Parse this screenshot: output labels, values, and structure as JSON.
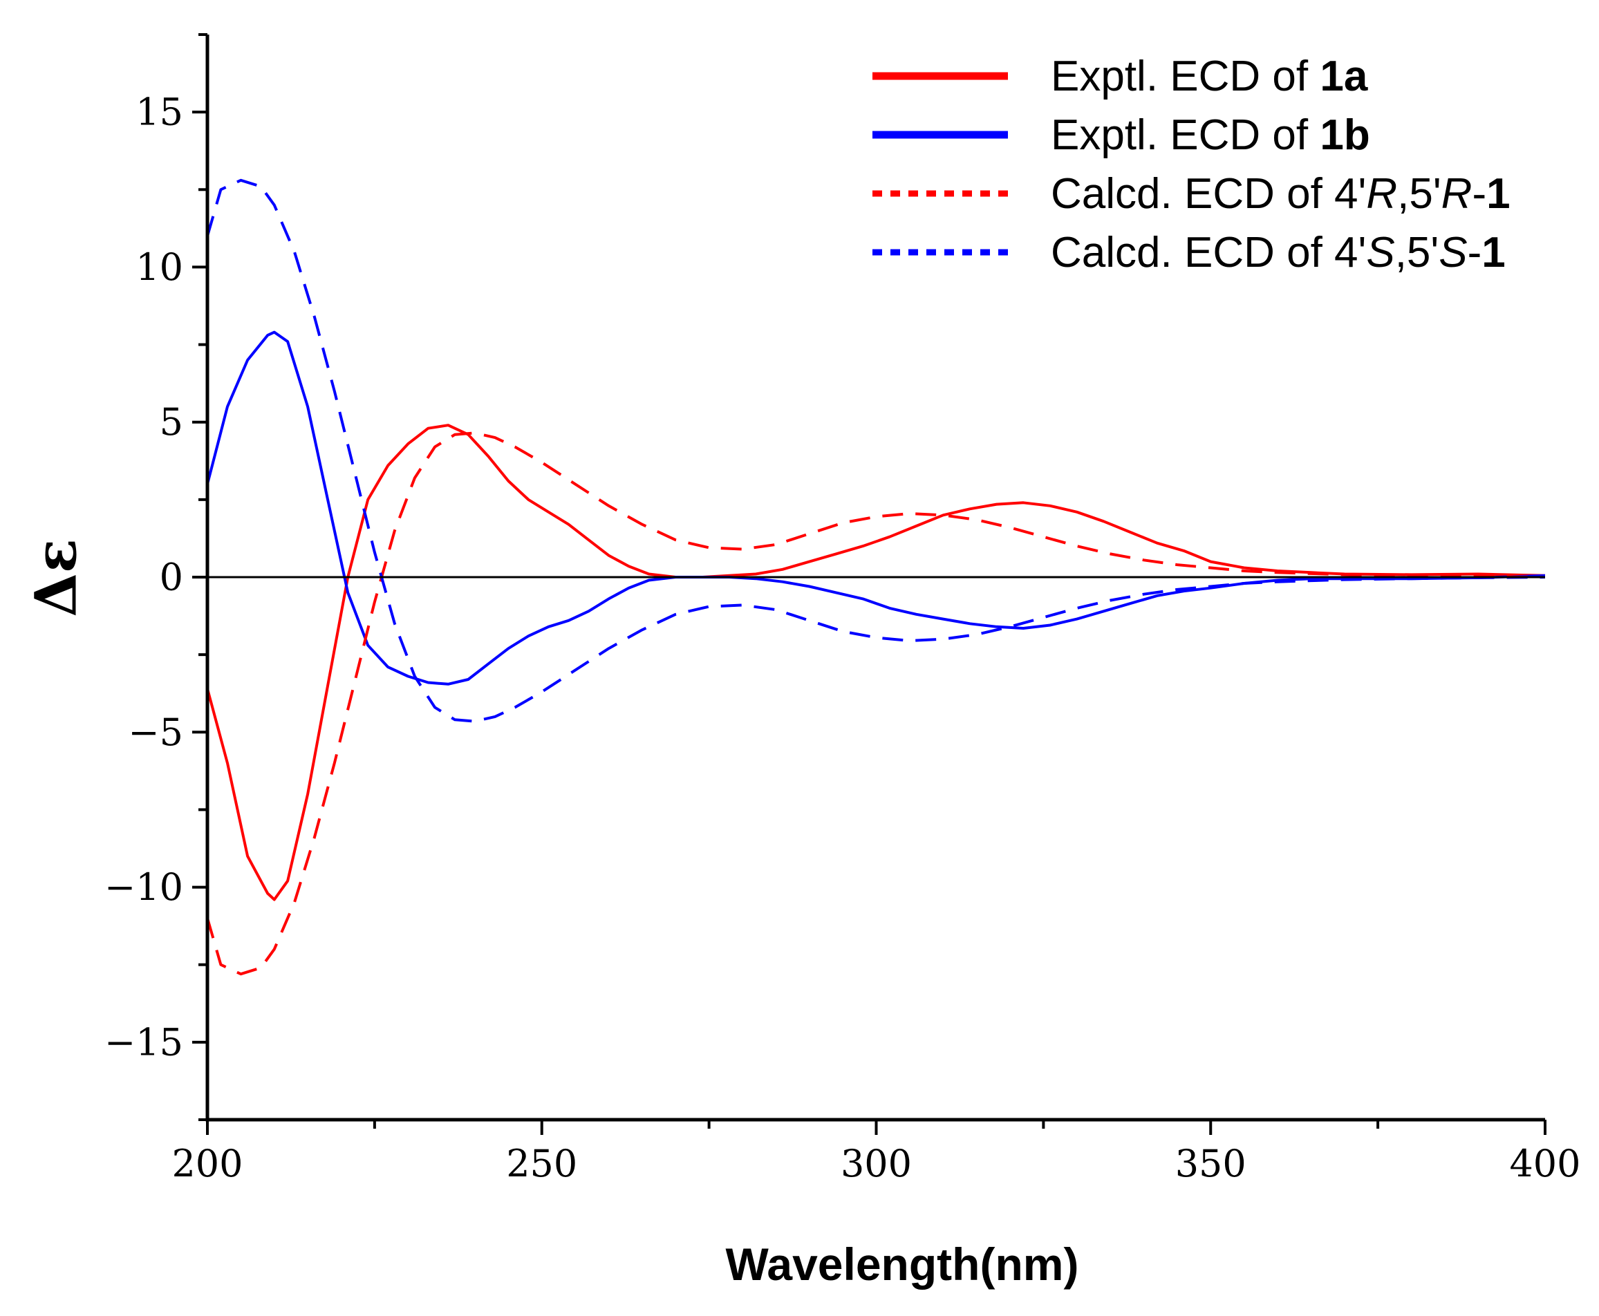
{
  "chart_data": {
    "type": "line",
    "title": "",
    "xlabel": "Wavelength(nm)",
    "ylabel": "Δε",
    "xlim": [
      200,
      400
    ],
    "ylim": [
      -17.5,
      17.5
    ],
    "xticks": [
      200,
      250,
      300,
      350,
      400
    ],
    "xtick_labels": [
      "200",
      "250",
      "300",
      "350",
      "400"
    ],
    "yticks": [
      -15,
      -10,
      -5,
      0,
      5,
      10,
      15
    ],
    "ytick_labels": [
      "−15",
      "−10",
      "−5",
      "0",
      "5",
      "10",
      "15"
    ],
    "legend_position": "top-right",
    "series": [
      {
        "name": "Exptl. ECD of 1a",
        "legend": {
          "prefix": "Exptl. ECD of ",
          "parts": [
            {
              "text": "1a",
              "style": "bold"
            }
          ]
        },
        "color": "#ff0000",
        "dash": "solid",
        "x": [
          200,
          203,
          206,
          209,
          210,
          212,
          215,
          218,
          221,
          224,
          227,
          230,
          233,
          236,
          239,
          242,
          245,
          248,
          251,
          254,
          257,
          260,
          263,
          266,
          270,
          274,
          278,
          282,
          286,
          290,
          294,
          298,
          302,
          306,
          310,
          314,
          318,
          322,
          326,
          330,
          334,
          338,
          342,
          346,
          350,
          355,
          360,
          365,
          370,
          380,
          390,
          400
        ],
        "y": [
          -3.6,
          -6.0,
          -9.0,
          -10.2,
          -10.4,
          -9.8,
          -7.0,
          -3.5,
          0.0,
          2.5,
          3.6,
          4.3,
          4.8,
          4.9,
          4.6,
          3.9,
          3.1,
          2.5,
          2.1,
          1.7,
          1.2,
          0.7,
          0.35,
          0.1,
          0.0,
          0.0,
          0.05,
          0.1,
          0.25,
          0.5,
          0.75,
          1.0,
          1.3,
          1.65,
          2.0,
          2.2,
          2.35,
          2.4,
          2.3,
          2.1,
          1.8,
          1.45,
          1.1,
          0.85,
          0.5,
          0.3,
          0.2,
          0.15,
          0.1,
          0.08,
          0.1,
          0.05
        ]
      },
      {
        "name": "Exptl. ECD of 1b",
        "legend": {
          "prefix": "Exptl. ECD of ",
          "parts": [
            {
              "text": "1b",
              "style": "bold"
            }
          ]
        },
        "color": "#0000ff",
        "dash": "solid",
        "x": [
          200,
          203,
          206,
          209,
          210,
          212,
          215,
          218,
          221,
          224,
          227,
          230,
          233,
          236,
          239,
          242,
          245,
          248,
          251,
          254,
          257,
          260,
          263,
          266,
          270,
          274,
          278,
          282,
          286,
          290,
          294,
          298,
          302,
          306,
          310,
          314,
          318,
          322,
          326,
          330,
          334,
          338,
          342,
          346,
          350,
          355,
          360,
          365,
          370,
          380,
          390,
          400
        ],
        "y": [
          3.0,
          5.5,
          7.0,
          7.8,
          7.9,
          7.6,
          5.5,
          2.5,
          -0.5,
          -2.2,
          -2.9,
          -3.2,
          -3.4,
          -3.45,
          -3.3,
          -2.8,
          -2.3,
          -1.9,
          -1.6,
          -1.4,
          -1.1,
          -0.7,
          -0.35,
          -0.1,
          0.0,
          0.0,
          0.0,
          -0.05,
          -0.15,
          -0.3,
          -0.5,
          -0.7,
          -1.0,
          -1.2,
          -1.35,
          -1.5,
          -1.6,
          -1.65,
          -1.55,
          -1.35,
          -1.1,
          -0.85,
          -0.6,
          -0.45,
          -0.35,
          -0.2,
          -0.1,
          -0.05,
          -0.05,
          -0.05,
          -0.02,
          0.05
        ]
      },
      {
        "name": "Calcd. ECD of 4'R,5'R-1",
        "legend": {
          "prefix": "Calcd. ECD of 4'",
          "parts": [
            {
              "text": "R",
              "style": "italic"
            },
            {
              "text": ",5'",
              "style": "normal"
            },
            {
              "text": "R",
              "style": "italic"
            },
            {
              "text": "-",
              "style": "normal"
            },
            {
              "text": "1",
              "style": "bold"
            }
          ]
        },
        "color": "#ff0000",
        "dash": "dashed",
        "x": [
          200,
          202,
          205,
          208,
          210,
          213,
          216,
          219,
          222,
          225,
          228,
          231,
          234,
          237,
          240,
          243,
          246,
          250,
          255,
          260,
          265,
          270,
          275,
          280,
          285,
          290,
          295,
          300,
          305,
          310,
          315,
          320,
          325,
          330,
          335,
          340,
          345,
          350,
          355,
          360,
          370,
          380,
          390,
          400
        ],
        "y": [
          -11.0,
          -12.5,
          -12.8,
          -12.6,
          -12.0,
          -10.5,
          -8.4,
          -6.0,
          -3.4,
          -0.8,
          1.5,
          3.2,
          4.2,
          4.6,
          4.65,
          4.5,
          4.2,
          3.7,
          3.0,
          2.3,
          1.7,
          1.2,
          0.95,
          0.9,
          1.05,
          1.4,
          1.75,
          1.95,
          2.05,
          2.0,
          1.85,
          1.6,
          1.3,
          1.0,
          0.75,
          0.55,
          0.4,
          0.3,
          0.2,
          0.15,
          0.08,
          0.05,
          0.02,
          0.0
        ]
      },
      {
        "name": "Calcd. ECD of 4'S,5'S-1",
        "legend": {
          "prefix": "Calcd. ECD of 4'",
          "parts": [
            {
              "text": "S",
              "style": "italic"
            },
            {
              "text": ",5'",
              "style": "normal"
            },
            {
              "text": "S",
              "style": "italic"
            },
            {
              "text": "-",
              "style": "normal"
            },
            {
              "text": "1",
              "style": "bold"
            }
          ]
        },
        "color": "#0000ff",
        "dash": "dashed",
        "x": [
          200,
          202,
          205,
          208,
          210,
          213,
          216,
          219,
          222,
          225,
          228,
          231,
          234,
          237,
          240,
          243,
          246,
          250,
          255,
          260,
          265,
          270,
          275,
          280,
          285,
          290,
          295,
          300,
          305,
          310,
          315,
          320,
          325,
          330,
          335,
          340,
          345,
          350,
          355,
          360,
          370,
          380,
          390,
          400
        ],
        "y": [
          11.0,
          12.5,
          12.8,
          12.6,
          12.0,
          10.5,
          8.4,
          6.0,
          3.4,
          0.8,
          -1.5,
          -3.2,
          -4.2,
          -4.6,
          -4.65,
          -4.5,
          -4.2,
          -3.7,
          -3.0,
          -2.3,
          -1.7,
          -1.2,
          -0.95,
          -0.9,
          -1.05,
          -1.4,
          -1.75,
          -1.95,
          -2.05,
          -2.0,
          -1.85,
          -1.6,
          -1.3,
          -1.0,
          -0.75,
          -0.55,
          -0.4,
          -0.3,
          -0.2,
          -0.15,
          -0.08,
          -0.05,
          -0.02,
          0.0
        ]
      }
    ]
  }
}
